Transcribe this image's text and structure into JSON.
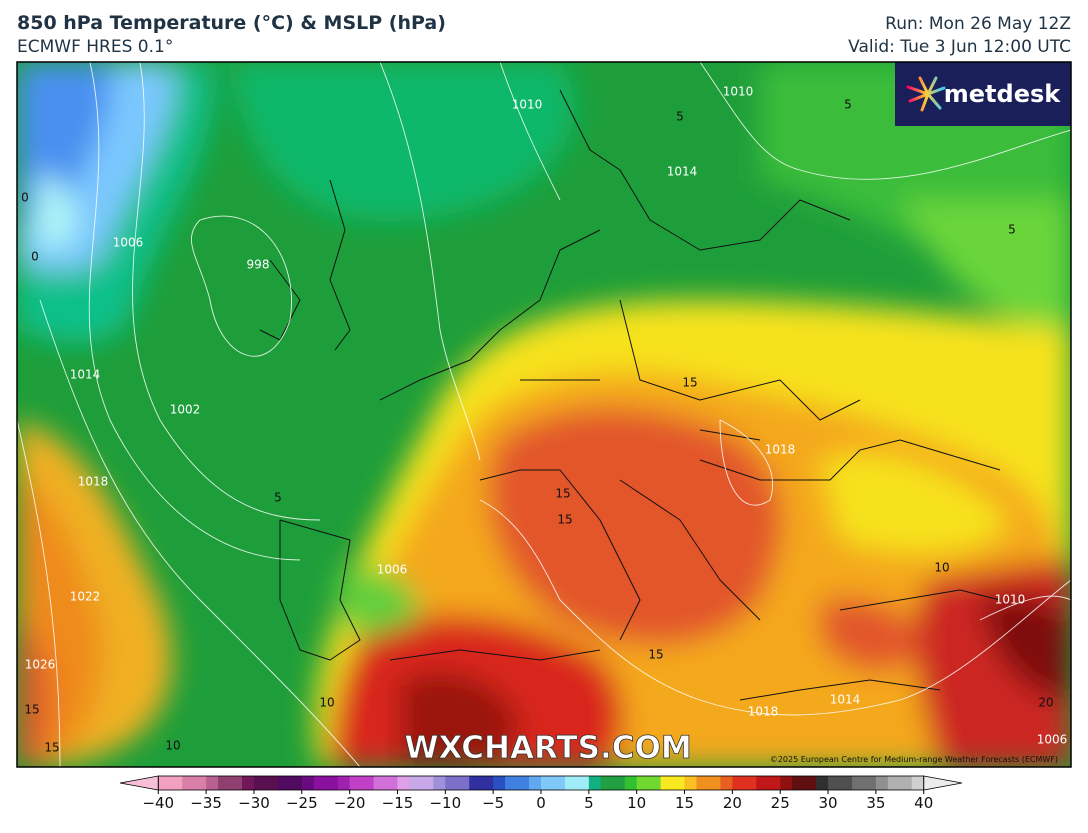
{
  "header": {
    "title": "850 hPa Temperature (°C) & MSLP (hPa)",
    "subtitle": "ECMWF HRES 0.1°",
    "run": "Run: Mon 26 May 12Z",
    "valid": "Valid: Tue 3 Jun 12:00 UTC"
  },
  "map": {
    "logo": "metdesk",
    "watermark": "WXCHARTS.COM",
    "copyright": "©2025 European Centre for Medium-range Weather Forecasts (ECMWF)",
    "contour_labels": [
      "1010",
      "1010",
      "1014",
      "1006",
      "998",
      "1014",
      "1002",
      "1018",
      "1022",
      "1026",
      "1018",
      "1006",
      "1010",
      "1014",
      "1018",
      "1006",
      "5",
      "5",
      "5",
      "5",
      "0",
      "0",
      "15",
      "15",
      "15",
      "15",
      "10",
      "10",
      "10",
      "15",
      "15",
      "20"
    ]
  },
  "colorbar": {
    "lim": [
      -44,
      44
    ],
    "ticks": [
      {
        "value": -40,
        "label": "−40"
      },
      {
        "value": -35,
        "label": "−35"
      },
      {
        "value": -30,
        "label": "−30"
      },
      {
        "value": -25,
        "label": "−25"
      },
      {
        "value": -20,
        "label": "−20"
      },
      {
        "value": -15,
        "label": "−15"
      },
      {
        "value": -10,
        "label": "−10"
      },
      {
        "value": -5,
        "label": "−5"
      },
      0,
      5,
      10,
      15,
      20,
      25,
      30,
      35,
      40
    ]
  }
}
